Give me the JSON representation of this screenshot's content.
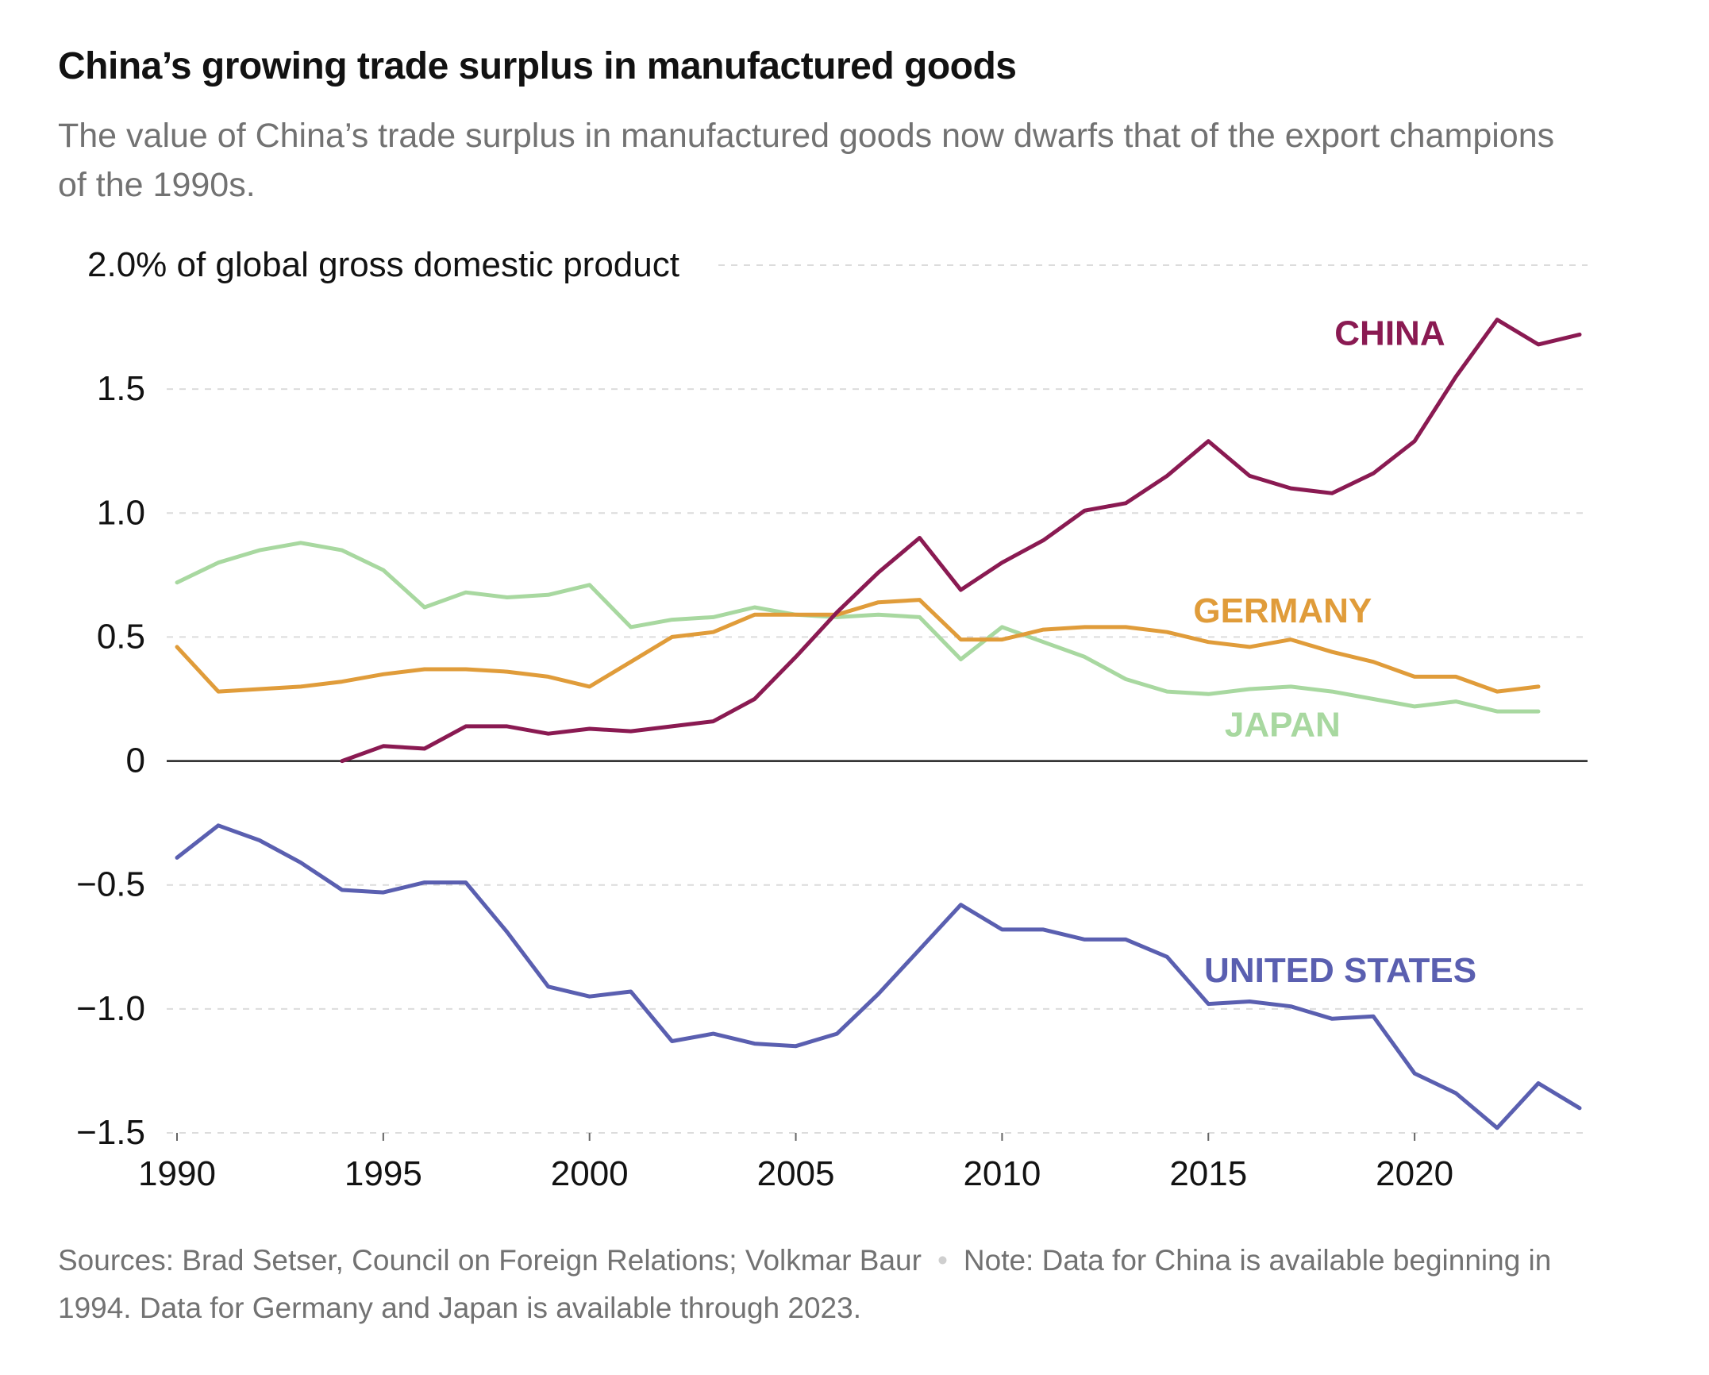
{
  "title": "China’s growing trade surplus in manufactured goods",
  "subtitle": "The value of China’s trade surplus in manufactured goods now dwarfs that of the export champions of the 1990s.",
  "footer": {
    "sources": "Sources: Brad Setser, Council on Foreign Relations; Volkmar Baur",
    "separator": "•",
    "note": "Note: Data for China is available beginning in 1994. Data for Germany and Japan is available through 2023."
  },
  "chart_data": {
    "type": "line",
    "ylabel": "% of global gross domestic product",
    "top_tick_label": "2.0% of global gross domestic product",
    "ylim": [
      -1.5,
      2.0
    ],
    "xlim": [
      1990,
      2024
    ],
    "y_ticks": [
      {
        "value": 1.5,
        "label": "1.5"
      },
      {
        "value": 1.0,
        "label": "1.0"
      },
      {
        "value": 0.5,
        "label": "0.5"
      },
      {
        "value": 0,
        "label": "0"
      },
      {
        "value": -0.5,
        "label": "−0.5"
      },
      {
        "value": -1.0,
        "label": "−1.0"
      },
      {
        "value": -1.5,
        "label": "−1.5"
      }
    ],
    "x_ticks": [
      {
        "value": 1990,
        "label": "1990"
      },
      {
        "value": 1995,
        "label": "1995"
      },
      {
        "value": 2000,
        "label": "2000"
      },
      {
        "value": 2005,
        "label": "2005"
      },
      {
        "value": 2010,
        "label": "2010"
      },
      {
        "value": 2015,
        "label": "2015"
      },
      {
        "value": 2020,
        "label": "2020"
      }
    ],
    "grid": true,
    "legend": "direct labels",
    "series": [
      {
        "name": "JAPAN",
        "color": "#a8d8a0",
        "label_year": 2016.8,
        "label_value": 0.15,
        "x": [
          1990,
          1991,
          1992,
          1993,
          1994,
          1995,
          1996,
          1997,
          1998,
          1999,
          2000,
          2001,
          2002,
          2003,
          2004,
          2005,
          2006,
          2007,
          2008,
          2009,
          2010,
          2011,
          2012,
          2013,
          2014,
          2015,
          2016,
          2017,
          2018,
          2019,
          2020,
          2021,
          2022,
          2023
        ],
        "values": [
          0.72,
          0.8,
          0.85,
          0.88,
          0.85,
          0.77,
          0.62,
          0.68,
          0.66,
          0.67,
          0.71,
          0.54,
          0.57,
          0.58,
          0.62,
          0.59,
          0.58,
          0.59,
          0.58,
          0.41,
          0.54,
          0.48,
          0.42,
          0.33,
          0.28,
          0.27,
          0.29,
          0.3,
          0.28,
          0.25,
          0.22,
          0.24,
          0.2,
          0.2
        ]
      },
      {
        "name": "GERMANY",
        "color": "#e09c3a",
        "label_year": 2016.8,
        "label_value": 0.61,
        "x": [
          1990,
          1991,
          1992,
          1993,
          1994,
          1995,
          1996,
          1997,
          1998,
          1999,
          2000,
          2001,
          2002,
          2003,
          2004,
          2005,
          2006,
          2007,
          2008,
          2009,
          2010,
          2011,
          2012,
          2013,
          2014,
          2015,
          2016,
          2017,
          2018,
          2019,
          2020,
          2021,
          2022,
          2023
        ],
        "values": [
          0.46,
          0.28,
          0.29,
          0.3,
          0.32,
          0.35,
          0.37,
          0.37,
          0.36,
          0.34,
          0.3,
          0.4,
          0.5,
          0.52,
          0.59,
          0.59,
          0.59,
          0.64,
          0.65,
          0.49,
          0.49,
          0.53,
          0.54,
          0.54,
          0.52,
          0.48,
          0.46,
          0.49,
          0.44,
          0.4,
          0.34,
          0.34,
          0.28,
          0.3
        ]
      },
      {
        "name": "CHINA",
        "color": "#8a1a52",
        "label_year": 2019.4,
        "label_value": 1.73,
        "x": [
          1994,
          1995,
          1996,
          1997,
          1998,
          1999,
          2000,
          2001,
          2002,
          2003,
          2004,
          2005,
          2006,
          2007,
          2008,
          2009,
          2010,
          2011,
          2012,
          2013,
          2014,
          2015,
          2016,
          2017,
          2018,
          2019,
          2020,
          2021,
          2022,
          2023,
          2024
        ],
        "values": [
          0.0,
          0.06,
          0.05,
          0.14,
          0.14,
          0.11,
          0.13,
          0.12,
          0.14,
          0.16,
          0.25,
          0.42,
          0.6,
          0.76,
          0.9,
          0.69,
          0.8,
          0.89,
          1.01,
          1.04,
          1.15,
          1.29,
          1.15,
          1.1,
          1.08,
          1.16,
          1.29,
          1.55,
          1.78,
          1.68,
          1.72
        ]
      },
      {
        "name": "UNITED STATES",
        "color": "#5a5fb0",
        "label_year": 2018.2,
        "label_value": -0.84,
        "x": [
          1990,
          1991,
          1992,
          1993,
          1994,
          1995,
          1996,
          1997,
          1998,
          1999,
          2000,
          2001,
          2002,
          2003,
          2004,
          2005,
          2006,
          2007,
          2008,
          2009,
          2010,
          2011,
          2012,
          2013,
          2014,
          2015,
          2016,
          2017,
          2018,
          2019,
          2020,
          2021,
          2022,
          2023,
          2024
        ],
        "values": [
          -0.39,
          -0.26,
          -0.32,
          -0.41,
          -0.52,
          -0.53,
          -0.49,
          -0.49,
          -0.69,
          -0.91,
          -0.95,
          -0.93,
          -1.13,
          -1.1,
          -1.14,
          -1.15,
          -1.1,
          -0.94,
          -0.76,
          -0.58,
          -0.68,
          -0.68,
          -0.72,
          -0.72,
          -0.79,
          -0.98,
          -0.97,
          -0.99,
          -1.04,
          -1.03,
          -1.26,
          -1.34,
          -1.48,
          -1.3,
          -1.4
        ]
      }
    ]
  }
}
